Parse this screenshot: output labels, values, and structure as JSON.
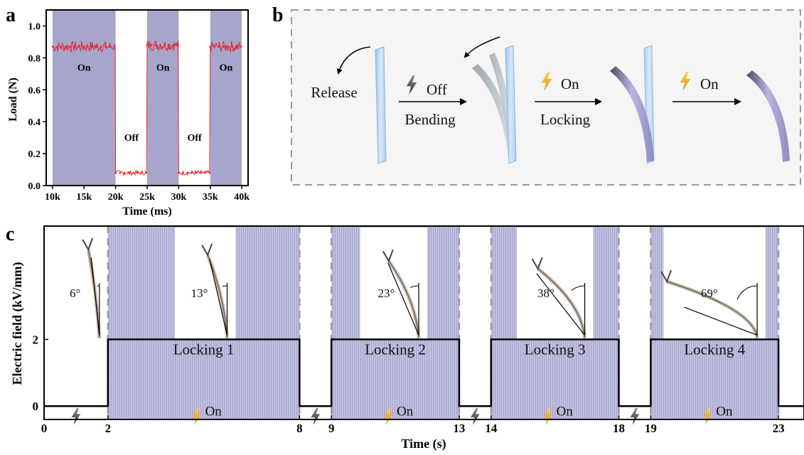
{
  "panels": {
    "a": "a",
    "b": "b",
    "c": "c"
  },
  "chart_data": [
    {
      "type": "line",
      "xlabel": "Time (ms)",
      "ylabel": "Load (N)",
      "xlim": [
        9000,
        41000
      ],
      "ylim": [
        0.0,
        1.1
      ],
      "xticks": [
        "10k",
        "15k",
        "20k",
        "25k",
        "30k",
        "35k",
        "40k"
      ],
      "xtick_values": [
        10000,
        15000,
        20000,
        25000,
        30000,
        35000,
        40000
      ],
      "yticks": [
        "0.0",
        "0.2",
        "0.4",
        "0.6",
        "0.8",
        "1.0"
      ],
      "ytick_values": [
        0.0,
        0.2,
        0.4,
        0.6,
        0.8,
        1.0
      ],
      "segments": [
        {
          "state": "On",
          "x0": 10000,
          "x1": 20000,
          "load": 0.87,
          "shaded": true
        },
        {
          "state": "Off",
          "x0": 20000,
          "x1": 25000,
          "load": 0.08,
          "shaded": false
        },
        {
          "state": "On",
          "x0": 25000,
          "x1": 30000,
          "load": 0.88,
          "shaded": true
        },
        {
          "state": "Off",
          "x0": 30000,
          "x1": 35000,
          "load": 0.08,
          "shaded": false
        },
        {
          "state": "On",
          "x0": 35000,
          "x1": 40000,
          "load": 0.87,
          "shaded": true
        }
      ],
      "state_labels": [
        {
          "text": "On",
          "x": 15000,
          "y": 0.72
        },
        {
          "text": "Off",
          "x": 22500,
          "y": 0.28
        },
        {
          "text": "On",
          "x": 27500,
          "y": 0.72
        },
        {
          "text": "Off",
          "x": 32500,
          "y": 0.28
        },
        {
          "text": "On",
          "x": 37500,
          "y": 0.72
        }
      ],
      "series_color": "#e8222a",
      "shade_color": "#a6a6cc",
      "grid": false
    },
    {
      "type": "line",
      "xlabel": "Time (s)",
      "ylabel": "Electric field (kV/mm)",
      "xlim": [
        0,
        23.8
      ],
      "ylim": [
        -0.4,
        5.4
      ],
      "xticks": [
        "0",
        "2",
        "8",
        "9",
        "13",
        "14",
        "18",
        "19",
        "23"
      ],
      "xtick_values": [
        0,
        2,
        8,
        9,
        13,
        14,
        18,
        19,
        23
      ],
      "yticks": [
        "0",
        "2"
      ],
      "ytick_values": [
        0,
        2
      ],
      "field_x": [
        0,
        2,
        2,
        8,
        8,
        9,
        9,
        13,
        13,
        14,
        14,
        18,
        18,
        19,
        19,
        23,
        23,
        23.8
      ],
      "field_y": [
        0,
        0,
        2,
        2,
        0,
        0,
        2,
        2,
        0,
        0,
        2,
        2,
        0,
        0,
        2,
        2,
        0,
        0
      ],
      "locking_labels": [
        {
          "text": "Locking 1",
          "x": 5
        },
        {
          "text": "Locking 2",
          "x": 11
        },
        {
          "text": "Locking 3",
          "x": 16
        },
        {
          "text": "Locking 4",
          "x": 21
        }
      ],
      "on_labels": [
        {
          "text": "On",
          "x": 5
        },
        {
          "text": "On",
          "x": 11
        },
        {
          "text": "On",
          "x": 16
        },
        {
          "text": "On",
          "x": 21
        }
      ],
      "off_bolts_x": [
        1,
        8.5,
        13.5,
        18.5
      ],
      "bend_angles": [
        "6°",
        "13°",
        "23°",
        "38°",
        "69°"
      ],
      "photo_panels": [
        {
          "x0": 0.4,
          "x1": 2.0,
          "angle_label": 0
        },
        {
          "x0": 4.1,
          "x1": 6.0,
          "angle_label": 1
        },
        {
          "x0": 9.9,
          "x1": 12.0,
          "angle_label": 2
        },
        {
          "x0": 14.8,
          "x1": 17.2,
          "angle_label": 3
        },
        {
          "x0": 19.4,
          "x1": 22.6,
          "angle_label": 4
        }
      ],
      "shade_color": "#a6a6cc",
      "grid": false
    }
  ],
  "diagram_b": {
    "release_label": "Release",
    "bending_label": "Bending",
    "locking_label": "Locking",
    "off_label": "Off",
    "on_label_1": "On",
    "on_label_2": "On",
    "colors": {
      "beam_relaxed": "#bcd8f2",
      "beam_locked": "#a8a6d2",
      "bolt_on": "#f5a623",
      "bolt_off": "#555555",
      "background": "#f5f5f5"
    }
  }
}
